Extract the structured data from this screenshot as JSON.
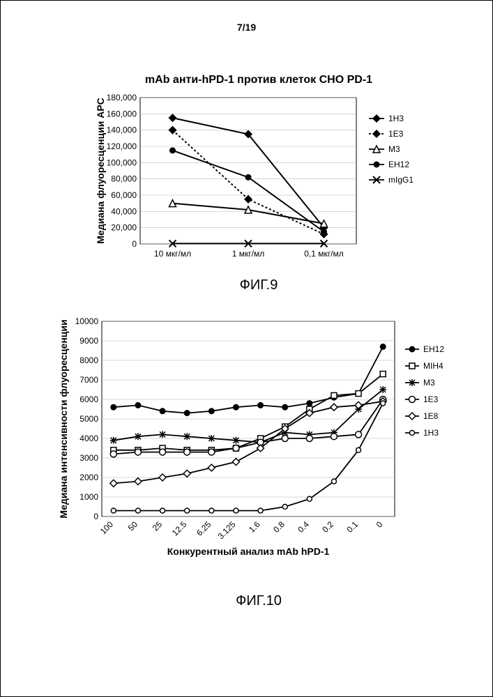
{
  "page_number": "7/19",
  "fig9": {
    "type": "line",
    "title": "mAb анти-hPD-1 против клеток CHO PD-1",
    "ylabel": "Медиана флуоресценции APC",
    "caption": "ФИГ.9",
    "categories": [
      "10 мкг/мл",
      "1 мкг/мл",
      "0,1 мкг/мл"
    ],
    "ylim": [
      0,
      180000
    ],
    "ytick_step": 20000,
    "background_color": "#ffffff",
    "grid_color": "#b0b0b0",
    "line_color": "#000000",
    "series": [
      {
        "name": "1H3",
        "marker": "diamond",
        "dash": "solid",
        "values": [
          155000,
          135000,
          20000
        ]
      },
      {
        "name": "1E3",
        "marker": "diamond",
        "dash": "dotted",
        "values": [
          140000,
          55000,
          12000
        ]
      },
      {
        "name": "M3",
        "marker": "triangle",
        "dash": "solid",
        "values": [
          50000,
          42000,
          25000
        ]
      },
      {
        "name": "EH12",
        "marker": "circle",
        "dash": "solid",
        "values": [
          115000,
          82000,
          15000
        ]
      },
      {
        "name": "mIgG1",
        "marker": "x",
        "dash": "solid",
        "values": [
          500,
          500,
          500
        ]
      }
    ]
  },
  "fig10": {
    "type": "line",
    "ylabel": "Медиана интенсивности флуоресценции",
    "xlabel": "Конкурентный анализ mAb hPD-1",
    "caption": "ФИГ.10",
    "x_categories": [
      "100",
      "50",
      "25",
      "12.5",
      "6.25",
      "3.125",
      "1.6",
      "0.8",
      "0.4",
      "0.2",
      "0.1",
      "0"
    ],
    "ylim": [
      0,
      10000
    ],
    "ytick_step": 1000,
    "background_color": "#ffffff",
    "grid_color": "#b0b0b0",
    "line_color": "#000000",
    "series": [
      {
        "name": "EH12",
        "marker": "circle-filled",
        "values": [
          5600,
          5700,
          5400,
          5300,
          5400,
          5600,
          5700,
          5600,
          5800,
          6100,
          6300,
          8700
        ]
      },
      {
        "name": "MIH4",
        "marker": "square-open",
        "values": [
          3400,
          3400,
          3500,
          3400,
          3400,
          3500,
          4000,
          4600,
          5500,
          6200,
          6300,
          7300
        ]
      },
      {
        "name": "M3",
        "marker": "star",
        "values": [
          3900,
          4100,
          4200,
          4100,
          4000,
          3900,
          3800,
          4300,
          4200,
          4300,
          5500,
          6500
        ]
      },
      {
        "name": "1E3",
        "marker": "circle-open",
        "values": [
          3200,
          3300,
          3300,
          3300,
          3300,
          3500,
          3800,
          4000,
          4000,
          4100,
          4200,
          6000
        ]
      },
      {
        "name": "1E8",
        "marker": "diamond-open",
        "values": [
          1700,
          1800,
          2000,
          2200,
          2500,
          2800,
          3500,
          4500,
          5300,
          5600,
          5700,
          5900
        ]
      },
      {
        "name": "1H3",
        "marker": "circle-open-sm",
        "values": [
          300,
          300,
          300,
          300,
          300,
          300,
          300,
          500,
          900,
          1800,
          3400,
          5800
        ]
      }
    ]
  }
}
